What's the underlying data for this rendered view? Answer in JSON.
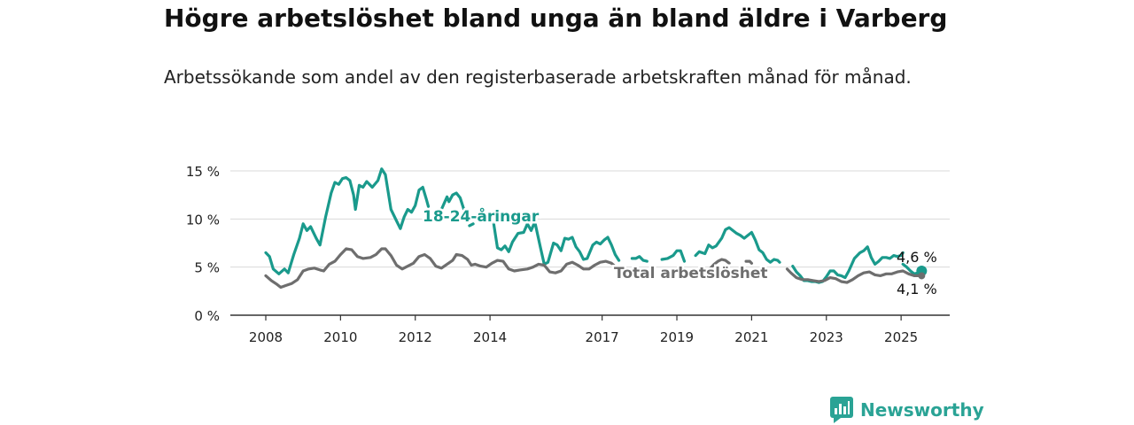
{
  "header": {
    "title": "Högre arbetslöshet bland unga än bland äldre i Varberg",
    "subtitle": "Arbetssökande som andel av den registerbaserade arbetskraften månad för månad."
  },
  "brand": {
    "name": "Newsworthy",
    "icon": "newsworthy-logo-icon",
    "color": "#2aa395"
  },
  "chart_data": {
    "type": "line",
    "title": "Högre arbetslöshet bland unga än bland äldre i Varberg",
    "ylim": [
      0,
      15
    ],
    "yticks": [
      0,
      5,
      10,
      15
    ],
    "ytick_labels": [
      "0 %",
      "5 %",
      "10 %",
      "15 %"
    ],
    "xlim": [
      2008,
      2025.4
    ],
    "xticks": [
      2008,
      2010,
      2012,
      2014,
      2017,
      2019,
      2021,
      2023,
      2025
    ],
    "xtick_labels": [
      "2008",
      "2010",
      "2012",
      "2014",
      "2017",
      "2019",
      "2021",
      "2023",
      "2025"
    ],
    "grid": true,
    "series": [
      {
        "name": "18-24-åringar",
        "color": "#1a9a8c",
        "end_label": "4,6 %",
        "points": [
          [
            2008.0,
            6.5
          ],
          [
            2008.1,
            6.1
          ],
          [
            2008.2,
            4.8
          ],
          [
            2008.35,
            4.3
          ],
          [
            2008.5,
            4.8
          ],
          [
            2008.6,
            4.4
          ],
          [
            2008.75,
            6.3
          ],
          [
            2008.9,
            8.0
          ],
          [
            2009.0,
            9.5
          ],
          [
            2009.1,
            8.8
          ],
          [
            2009.2,
            9.2
          ],
          [
            2009.35,
            8.0
          ],
          [
            2009.45,
            7.3
          ],
          [
            2009.6,
            10.2
          ],
          [
            2009.75,
            12.7
          ],
          [
            2009.85,
            13.8
          ],
          [
            2009.95,
            13.6
          ],
          [
            2010.05,
            14.2
          ],
          [
            2010.15,
            14.3
          ],
          [
            2010.25,
            14.0
          ],
          [
            2010.35,
            12.5
          ],
          [
            2010.4,
            11.0
          ],
          [
            2010.5,
            13.5
          ],
          [
            2010.6,
            13.3
          ],
          [
            2010.7,
            13.9
          ],
          [
            2010.85,
            13.3
          ],
          [
            2011.0,
            14.0
          ],
          [
            2011.1,
            15.2
          ],
          [
            2011.2,
            14.6
          ],
          [
            2011.35,
            11.0
          ],
          [
            2011.5,
            9.8
          ],
          [
            2011.6,
            9.0
          ],
          [
            2011.7,
            10.2
          ],
          [
            2011.8,
            11.0
          ],
          [
            2011.9,
            10.7
          ],
          [
            2012.0,
            11.4
          ],
          [
            2012.1,
            13.0
          ],
          [
            2012.2,
            13.3
          ],
          [
            2012.3,
            12.0
          ],
          [
            2012.35,
            11.3
          ],
          null,
          [
            2012.7,
            11.0
          ],
          [
            2012.85,
            12.3
          ],
          [
            2012.9,
            11.8
          ],
          [
            2013.0,
            12.5
          ],
          [
            2013.1,
            12.7
          ],
          [
            2013.2,
            12.2
          ],
          [
            2013.3,
            11.0
          ],
          null,
          [
            2013.45,
            9.3
          ],
          [
            2013.55,
            9.5
          ],
          null,
          [
            2014.1,
            9.5
          ],
          [
            2014.2,
            7.0
          ],
          [
            2014.3,
            6.8
          ],
          [
            2014.4,
            7.2
          ],
          [
            2014.5,
            6.6
          ],
          [
            2014.6,
            7.6
          ],
          [
            2014.75,
            8.5
          ],
          [
            2014.9,
            8.6
          ],
          [
            2015.0,
            9.5
          ],
          [
            2015.1,
            8.8
          ],
          [
            2015.2,
            9.7
          ],
          [
            2015.35,
            7.0
          ],
          [
            2015.45,
            5.3
          ],
          [
            2015.55,
            5.5
          ],
          [
            2015.7,
            7.5
          ],
          [
            2015.8,
            7.3
          ],
          [
            2015.9,
            6.7
          ],
          [
            2016.0,
            8.0
          ],
          [
            2016.1,
            7.9
          ],
          [
            2016.2,
            8.1
          ],
          [
            2016.3,
            7.1
          ],
          [
            2016.4,
            6.6
          ],
          [
            2016.5,
            5.8
          ],
          [
            2016.6,
            5.9
          ],
          [
            2016.75,
            7.3
          ],
          [
            2016.85,
            7.6
          ],
          [
            2016.95,
            7.4
          ],
          [
            2017.05,
            7.8
          ],
          [
            2017.15,
            8.1
          ],
          [
            2017.25,
            7.3
          ],
          [
            2017.35,
            6.3
          ],
          [
            2017.45,
            5.7
          ],
          null,
          [
            2017.8,
            5.9
          ],
          [
            2017.9,
            5.9
          ],
          [
            2018.0,
            6.1
          ],
          [
            2018.1,
            5.7
          ],
          [
            2018.2,
            5.6
          ],
          null,
          [
            2018.6,
            5.8
          ],
          [
            2018.75,
            5.9
          ],
          [
            2018.9,
            6.2
          ],
          [
            2019.0,
            6.7
          ],
          [
            2019.1,
            6.7
          ],
          [
            2019.2,
            5.6
          ],
          null,
          [
            2019.5,
            6.2
          ],
          [
            2019.6,
            6.6
          ],
          [
            2019.75,
            6.4
          ],
          [
            2019.85,
            7.3
          ],
          [
            2019.95,
            7.0
          ],
          [
            2020.05,
            7.2
          ],
          [
            2020.2,
            8.0
          ],
          [
            2020.3,
            8.9
          ],
          [
            2020.4,
            9.1
          ],
          [
            2020.5,
            8.8
          ],
          [
            2020.6,
            8.5
          ],
          [
            2020.7,
            8.3
          ],
          [
            2020.8,
            8.0
          ],
          [
            2020.9,
            8.3
          ],
          [
            2021.0,
            8.6
          ],
          [
            2021.1,
            7.8
          ],
          [
            2021.2,
            6.8
          ],
          [
            2021.3,
            6.5
          ],
          [
            2021.4,
            5.8
          ],
          [
            2021.5,
            5.5
          ],
          [
            2021.6,
            5.8
          ],
          [
            2021.7,
            5.7
          ],
          [
            2021.75,
            5.5
          ],
          null,
          [
            2022.1,
            5.1
          ],
          [
            2022.2,
            4.5
          ],
          [
            2022.3,
            4.1
          ],
          [
            2022.4,
            3.6
          ],
          [
            2022.5,
            3.6
          ],
          [
            2022.6,
            3.5
          ],
          [
            2022.7,
            3.5
          ],
          [
            2022.8,
            3.4
          ],
          [
            2022.9,
            3.5
          ],
          [
            2023.0,
            4.0
          ],
          [
            2023.1,
            4.6
          ],
          [
            2023.2,
            4.6
          ],
          [
            2023.3,
            4.2
          ],
          [
            2023.4,
            4.1
          ],
          [
            2023.5,
            3.9
          ],
          [
            2023.6,
            4.6
          ],
          [
            2023.75,
            5.9
          ],
          [
            2023.9,
            6.5
          ],
          [
            2024.0,
            6.7
          ],
          [
            2024.1,
            7.1
          ],
          [
            2024.2,
            6.0
          ],
          [
            2024.3,
            5.3
          ],
          [
            2024.4,
            5.6
          ],
          [
            2024.5,
            6.0
          ],
          [
            2024.6,
            6.0
          ],
          [
            2024.7,
            5.9
          ],
          [
            2024.8,
            6.2
          ],
          [
            2024.9,
            6.1
          ],
          [
            2025.0,
            6.2
          ],
          [
            2025.05,
            6.5
          ],
          null,
          [
            2025.05,
            5.3
          ],
          [
            2025.15,
            5.0
          ],
          [
            2025.25,
            4.6
          ],
          [
            2025.35,
            4.3
          ],
          [
            2025.45,
            4.4
          ],
          [
            2025.55,
            4.6
          ]
        ]
      },
      {
        "name": "Total arbetslöshet",
        "color": "#6e6e6e",
        "end_label": "4,1 %",
        "points": [
          [
            2008.0,
            4.1
          ],
          [
            2008.15,
            3.6
          ],
          [
            2008.3,
            3.2
          ],
          [
            2008.4,
            2.9
          ],
          [
            2008.55,
            3.1
          ],
          [
            2008.7,
            3.3
          ],
          [
            2008.85,
            3.7
          ],
          [
            2009.0,
            4.6
          ],
          [
            2009.15,
            4.8
          ],
          [
            2009.3,
            4.9
          ],
          [
            2009.45,
            4.7
          ],
          [
            2009.55,
            4.6
          ],
          [
            2009.7,
            5.3
          ],
          [
            2009.85,
            5.6
          ],
          [
            2010.0,
            6.3
          ],
          [
            2010.15,
            6.9
          ],
          [
            2010.3,
            6.8
          ],
          [
            2010.45,
            6.1
          ],
          [
            2010.6,
            5.9
          ],
          [
            2010.8,
            6.0
          ],
          [
            2010.95,
            6.3
          ],
          [
            2011.1,
            6.9
          ],
          [
            2011.2,
            6.9
          ],
          [
            2011.35,
            6.2
          ],
          [
            2011.5,
            5.2
          ],
          [
            2011.65,
            4.8
          ],
          [
            2011.8,
            5.1
          ],
          [
            2011.95,
            5.4
          ],
          [
            2012.1,
            6.1
          ],
          [
            2012.25,
            6.3
          ],
          [
            2012.4,
            5.9
          ],
          [
            2012.55,
            5.1
          ],
          [
            2012.7,
            4.9
          ],
          [
            2012.85,
            5.3
          ],
          [
            2013.0,
            5.7
          ],
          [
            2013.1,
            6.3
          ],
          [
            2013.25,
            6.2
          ],
          [
            2013.4,
            5.8
          ],
          [
            2013.5,
            5.2
          ],
          [
            2013.6,
            5.3
          ],
          [
            2013.75,
            5.1
          ],
          [
            2013.9,
            5.0
          ],
          [
            2014.05,
            5.4
          ],
          [
            2014.2,
            5.7
          ],
          [
            2014.35,
            5.6
          ],
          [
            2014.5,
            4.8
          ],
          [
            2014.65,
            4.6
          ],
          [
            2014.8,
            4.7
          ],
          [
            2015.0,
            4.8
          ],
          [
            2015.15,
            5.0
          ],
          [
            2015.3,
            5.3
          ],
          [
            2015.45,
            5.2
          ],
          [
            2015.6,
            4.5
          ],
          [
            2015.75,
            4.4
          ],
          [
            2015.9,
            4.6
          ],
          [
            2016.05,
            5.3
          ],
          [
            2016.2,
            5.5
          ],
          [
            2016.35,
            5.2
          ],
          [
            2016.5,
            4.8
          ],
          [
            2016.65,
            4.8
          ],
          [
            2016.8,
            5.2
          ],
          [
            2016.95,
            5.5
          ],
          [
            2017.1,
            5.6
          ],
          [
            2017.25,
            5.4
          ],
          [
            2017.4,
            4.9
          ],
          [
            2017.5,
            4.7
          ],
          null,
          [
            2019.9,
            4.9
          ],
          [
            2020.0,
            5.3
          ],
          [
            2020.1,
            5.6
          ],
          [
            2020.2,
            5.8
          ],
          [
            2020.3,
            5.7
          ],
          [
            2020.4,
            5.4
          ],
          null,
          [
            2020.85,
            5.6
          ],
          [
            2020.95,
            5.6
          ],
          [
            2021.0,
            5.4
          ],
          null,
          [
            2021.95,
            4.8
          ],
          [
            2022.05,
            4.4
          ],
          [
            2022.2,
            3.9
          ],
          [
            2022.35,
            3.7
          ],
          [
            2022.5,
            3.7
          ],
          [
            2022.65,
            3.6
          ],
          [
            2022.8,
            3.5
          ],
          [
            2022.95,
            3.6
          ],
          [
            2023.1,
            3.9
          ],
          [
            2023.25,
            3.8
          ],
          [
            2023.4,
            3.5
          ],
          [
            2023.55,
            3.4
          ],
          [
            2023.7,
            3.7
          ],
          [
            2023.85,
            4.1
          ],
          [
            2024.0,
            4.4
          ],
          [
            2024.15,
            4.5
          ],
          [
            2024.3,
            4.2
          ],
          [
            2024.45,
            4.1
          ],
          [
            2024.6,
            4.3
          ],
          [
            2024.75,
            4.3
          ],
          [
            2024.9,
            4.5
          ],
          [
            2025.05,
            4.6
          ],
          [
            2025.2,
            4.3
          ],
          [
            2025.35,
            4.1
          ],
          [
            2025.45,
            4.1
          ],
          [
            2025.55,
            4.1
          ]
        ]
      }
    ]
  }
}
